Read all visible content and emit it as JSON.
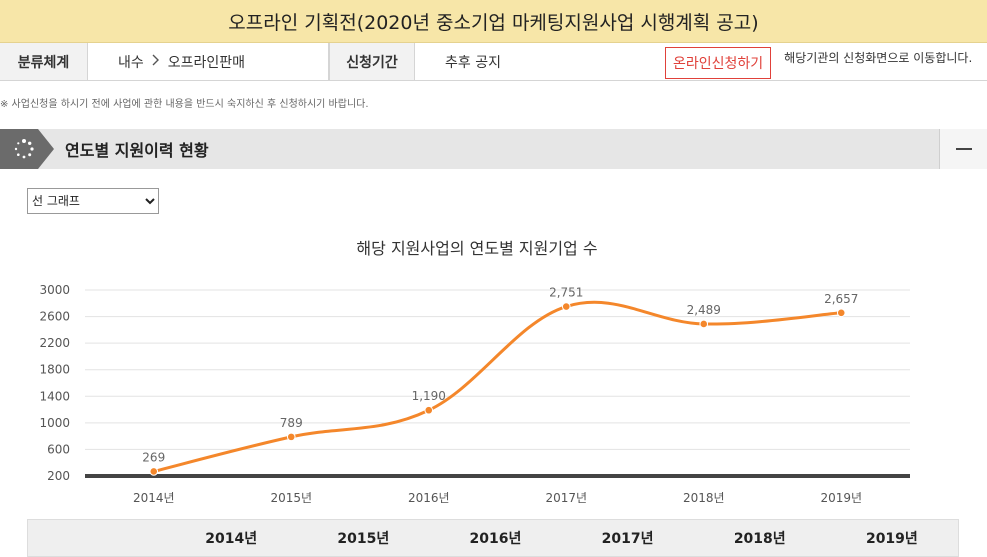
{
  "page": {
    "title": "오프라인 기획전(2020년 중소기업 마케팅지원사업 시행계획 공고)"
  },
  "info": {
    "category_label": "분류체계",
    "category_path": [
      "내수",
      "오프라인판매"
    ],
    "period_label": "신청기간",
    "period_value": "추후 공지",
    "apply_button": "온라인신청하기",
    "apply_note": "해당기관의 신청화면으로 이동합니다."
  },
  "notice": "※ 사업신청을 하시기 전에 사업에 관한 내용을 반드시 숙지하신 후 신청하시기 바랍니다.",
  "section": {
    "title": "연도별 지원이력 현황",
    "collapse_icon": "minus-icon",
    "bullet_icon": "dotted-circle-icon"
  },
  "chart_select": {
    "selected": "선 그래프"
  },
  "chart_data": {
    "type": "line",
    "title": "해당 지원사업의 연도별 지원기업 수",
    "categories": [
      "2014년",
      "2015년",
      "2016년",
      "2017년",
      "2018년",
      "2019년"
    ],
    "series": [
      {
        "values": [
          269,
          789,
          1190,
          2751,
          2489,
          2657
        ],
        "data_labels": [
          "269",
          "789",
          "1,190",
          "2,751",
          "2,489",
          "2,657"
        ],
        "color": "#f4872b"
      }
    ],
    "ylim": [
      200,
      3000
    ],
    "yticks": [
      3000,
      2600,
      2200,
      1800,
      1400,
      1000,
      600,
      200
    ],
    "grid": true,
    "xlabel": "",
    "ylabel": ""
  },
  "table": {
    "years": [
      "2014년",
      "2015년",
      "2016년",
      "2017년",
      "2018년",
      "2019년"
    ]
  },
  "colors": {
    "title_bg": "#f7e6a8",
    "accent_red": "#e0413a",
    "line_orange": "#f4872b"
  }
}
